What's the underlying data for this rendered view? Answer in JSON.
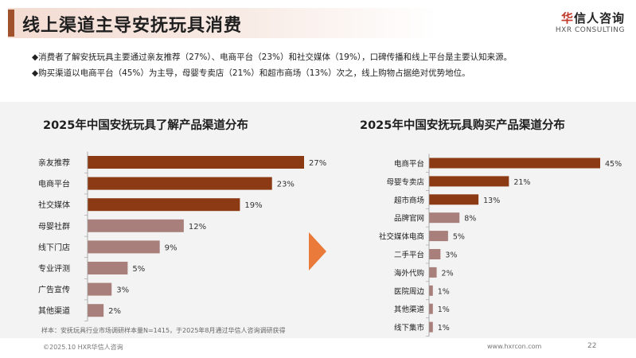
{
  "header": {
    "title": "线上渠道主导安抚玩具消费",
    "logo_brand_accent": "华",
    "logo_brand_rest": "信人咨询",
    "logo_sub": "HXR CONSULTING"
  },
  "bullets": [
    "◆消费者了解安抚玩具主要通过亲友推荐（27%）、电商平台（23%）和社交媒体（19%），口碑传播和线上平台是主要认知来源。",
    "◆购买渠道以电商平台（45%）为主导，母婴专卖店（21%）和超市商场（13%）次之，线上购物占据绝对优势地位。"
  ],
  "colors": {
    "dark_bar": "#8b3a14",
    "light_bar": "#a87f7b",
    "arrow": "#e97a3a",
    "accent": "#a0522d"
  },
  "chart_data": [
    {
      "type": "bar",
      "orientation": "horizontal",
      "title": "2025年中国安抚玩具了解产品渠道分布",
      "categories": [
        "亲友推荐",
        "电商平台",
        "社交媒体",
        "母婴社群",
        "线下门店",
        "专业评测",
        "广告宣传",
        "其他渠道"
      ],
      "values": [
        27,
        23,
        19,
        12,
        9,
        5,
        3,
        2
      ],
      "labels": [
        "27%",
        "23%",
        "19%",
        "12%",
        "9%",
        "5%",
        "3%",
        "2%"
      ],
      "highlight_count": 3
    },
    {
      "type": "bar",
      "orientation": "horizontal",
      "title": "2025年中国安抚玩具购买产品渠道分布",
      "categories": [
        "电商平台",
        "母婴专卖店",
        "超市商场",
        "品牌官网",
        "社交媒体电商",
        "二手平台",
        "海外代购",
        "医院周边",
        "其他渠道",
        "线下集市"
      ],
      "values": [
        45,
        21,
        13,
        8,
        5,
        3,
        2,
        1,
        1,
        1
      ],
      "labels": [
        "45%",
        "21%",
        "13%",
        "8%",
        "5%",
        "3%",
        "2%",
        "1%",
        "1%",
        "1%"
      ],
      "highlight_count": 3
    }
  ],
  "sample_note": "样本：安抚玩具行业市场调研样本量N=1415，于2025年8月通过华信人咨询调研获得",
  "footer": {
    "copyright": "©2025.10 HXR华信人咨询",
    "website": "www.hxrcon.com",
    "page_number": "22"
  }
}
